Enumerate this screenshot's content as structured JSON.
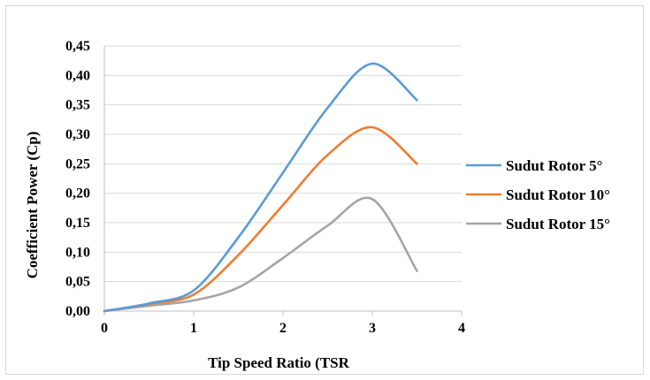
{
  "chart_data": {
    "type": "line",
    "title": "",
    "xlabel": "Tip Speed Ratio (TSR",
    "ylabel": "Coefficient Power (Cp)",
    "xlim": [
      0,
      4
    ],
    "ylim": [
      0,
      0.45
    ],
    "x_ticks": [
      0,
      1,
      2,
      3,
      4
    ],
    "x_tick_labels": [
      "0",
      "1",
      "2",
      "3",
      "4"
    ],
    "y_ticks": [
      0,
      0.05,
      0.1,
      0.15,
      0.2,
      0.25,
      0.3,
      0.35,
      0.4,
      0.45
    ],
    "y_tick_labels": [
      "0,00",
      "0,05",
      "0,10",
      "0,15",
      "0,20",
      "0,25",
      "0,30",
      "0,35",
      "0,40",
      "0,45"
    ],
    "grid": "horizontal",
    "legend_position": "right",
    "series": [
      {
        "name": "Sudut Rotor 5°",
        "color": "#5b9bd5",
        "x": [
          0,
          0.5,
          1,
          1.5,
          2,
          2.5,
          3,
          3.5
        ],
        "y": [
          0,
          0.013,
          0.035,
          0.125,
          0.235,
          0.345,
          0.42,
          0.358
        ]
      },
      {
        "name": "Sudut Rotor 10°",
        "color": "#ed7d31",
        "x": [
          0,
          0.5,
          1,
          1.5,
          2,
          2.5,
          3,
          3.5
        ],
        "y": [
          0,
          0.012,
          0.028,
          0.095,
          0.18,
          0.265,
          0.312,
          0.25
        ]
      },
      {
        "name": "Sudut Rotor 15°",
        "color": "#a5a5a5",
        "x": [
          0,
          0.5,
          1,
          1.5,
          2,
          2.5,
          3,
          3.5
        ],
        "y": [
          0,
          0.009,
          0.018,
          0.04,
          0.09,
          0.145,
          0.19,
          0.068
        ]
      }
    ]
  }
}
